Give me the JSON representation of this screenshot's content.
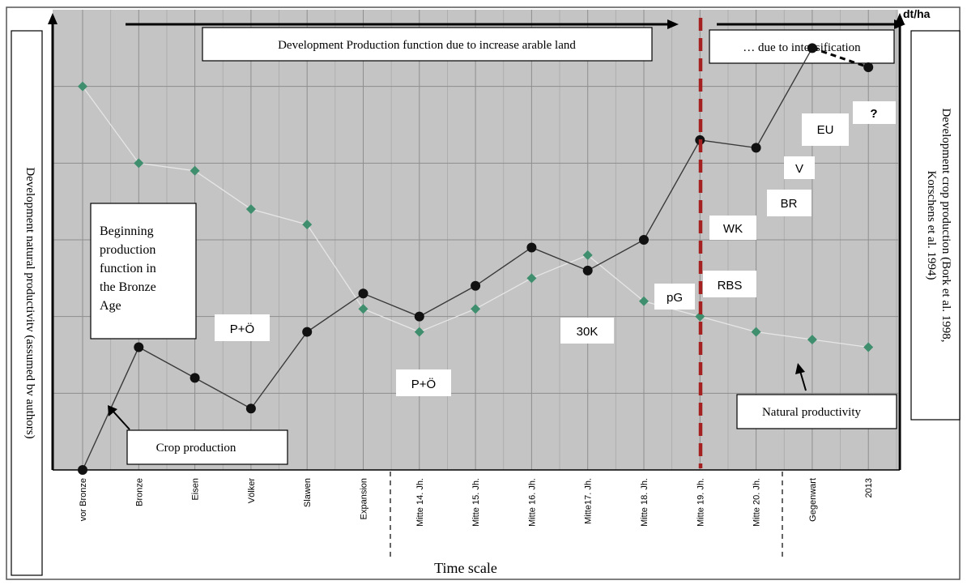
{
  "chart_data": {
    "type": "line",
    "categories": [
      "vor Bronze",
      "Bronze",
      "Eisen",
      "Völker",
      "Slawen",
      "Expansion",
      "Mitte 14. Jh.",
      "Mitte 15. Jh.",
      "Mitte 16. Jh.",
      "Mitte17. Jh.",
      "Mitte 18. Jh.",
      "Mitte 19. Jh.",
      "Mitte 20. Jh.",
      "Gegenwart",
      "2013"
    ],
    "series": [
      {
        "name": "Natural productivity",
        "values": [
          10,
          8,
          7.8,
          6.8,
          6.4,
          4.2,
          3.6,
          4.2,
          5,
          5.6,
          4.4,
          4,
          3.6,
          3.4,
          3.2
        ],
        "color": "#3f8f6f",
        "marker": "diamond"
      },
      {
        "name": "Crop production",
        "values": [
          0,
          3.2,
          2.4,
          1.6,
          3.6,
          4.6,
          4,
          4.8,
          5.8,
          5.2,
          6,
          8.6,
          8.4,
          11,
          10.5
        ],
        "color": "#111111",
        "marker": "circle",
        "dashed_last_segment": true
      }
    ],
    "ylim": [
      0,
      12
    ],
    "grid": true,
    "ylabel_left": "Development natural productivitv (assumed bv authors)",
    "ylabel_right": "Development crop production (Bork et al. 1998, Korschens et al. 1994)",
    "y_unit": "dt/ha",
    "xlabel": "Time scale",
    "period_divider_after": [
      "Mitte 19. Jh."
    ],
    "section_separators_after": [
      "Expansion",
      "Mitte 20. Jh."
    ],
    "headers": {
      "left": "Development Production function due to increase arable land",
      "right": "… due to intensification"
    },
    "annotations": {
      "beginning_lines": [
        "Beginning",
        "production",
        "function in",
        "the Bronze",
        "Age"
      ],
      "crop_production": "Crop production",
      "natural_productivity": "Natural productivity",
      "po_1": "P+Ö",
      "po_2": "P+Ö",
      "k30": "30K",
      "pg": "pG",
      "rbs": "RBS",
      "wk": "WK",
      "br": "BR",
      "v": "V",
      "eu": "EU",
      "q": "?"
    }
  }
}
